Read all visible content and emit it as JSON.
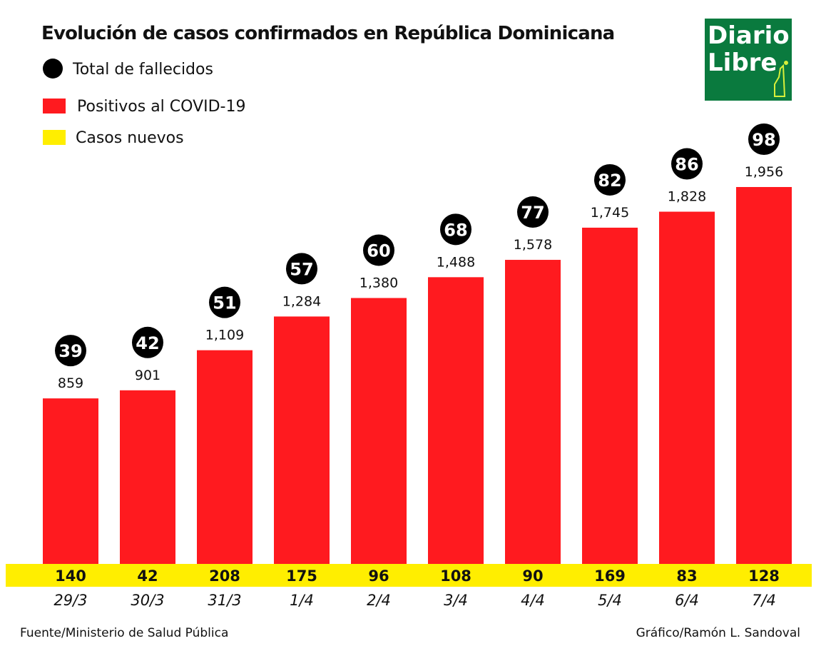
{
  "chart_data": {
    "type": "bar",
    "title": "Evolución de casos confirmados en República Dominicana",
    "legend": [
      {
        "label": "Total de fallecidos",
        "marker": "circle",
        "color": "#000000"
      },
      {
        "label": "Positivos al COVID-19",
        "marker": "square",
        "color": "#ff1a1f"
      },
      {
        "label": "Casos nuevos",
        "marker": "square",
        "color": "#ffee00"
      }
    ],
    "legend_position": "top-left",
    "categories": [
      "29/3",
      "30/3",
      "31/3",
      "1/4",
      "2/4",
      "3/4",
      "4/4",
      "5/4",
      "6/4",
      "7/4"
    ],
    "series": [
      {
        "name": "Positivos al COVID-19",
        "values": [
          859,
          901,
          1109,
          1284,
          1380,
          1488,
          1578,
          1745,
          1828,
          1956
        ],
        "labels": [
          "859",
          "901",
          "1,109",
          "1,284",
          "1,380",
          "1,488",
          "1,578",
          "1,745",
          "1,828",
          "1,956"
        ]
      },
      {
        "name": "Total de fallecidos",
        "values": [
          39,
          42,
          51,
          57,
          60,
          68,
          77,
          82,
          86,
          98
        ]
      },
      {
        "name": "Casos nuevos",
        "values": [
          140,
          42,
          208,
          175,
          96,
          108,
          90,
          169,
          83,
          128
        ]
      }
    ],
    "ylim": [
      0,
      2000
    ],
    "grid": false
  },
  "footer": {
    "source": "Fuente/Ministerio de Salud Pública",
    "credit": "Gráfico/Ramón L. Sandoval"
  },
  "logo": {
    "line1": "Diario",
    "line2": "Libre",
    "color": "#0a7a3e"
  }
}
